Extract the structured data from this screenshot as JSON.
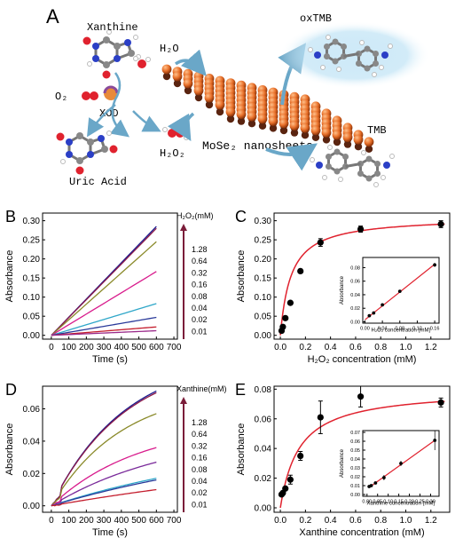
{
  "panel_a": {
    "letter": "A",
    "labels": {
      "xanthine": "Xanthine",
      "h2o": "H₂O",
      "o2": "O₂",
      "xod": "XOD",
      "h2o2": "H₂O₂",
      "uric_acid": "Uric Acid",
      "nanosheets": "MoSe₂ nanosheets",
      "oxtmb": "oxTMB",
      "tmb": "TMB"
    },
    "colors": {
      "nanosheet": "#e8702a",
      "oxtmb_glow": "#bfe3f5",
      "arrow": "#6aa7c8"
    }
  },
  "chart_data": [
    {
      "id": "B",
      "letter": "B",
      "type": "line",
      "xlabel": "Time (s)",
      "ylabel": "Absorbance",
      "xlim": [
        -50,
        720
      ],
      "ylim": [
        -0.01,
        0.32
      ],
      "xticks": [
        0,
        100,
        200,
        300,
        400,
        500,
        600,
        700
      ],
      "yticks": [
        0.0,
        0.05,
        0.1,
        0.15,
        0.2,
        0.25,
        0.3
      ],
      "ytick_labels": [
        "0.00",
        "0.05",
        "0.10",
        "0.15",
        "0.20",
        "0.25",
        "0.30"
      ],
      "legend_title": "H₂O₂(mM)",
      "legend_values": [
        "1.28",
        "0.64",
        "0.32",
        "0.16",
        "0.08",
        "0.04",
        "0.02",
        "0.01"
      ],
      "arrow_color": "#7b1d3a",
      "series": [
        {
          "color": "#1a1a8c",
          "x": [
            0,
            600
          ],
          "y": [
            0,
            0.285
          ]
        },
        {
          "color": "#8c1a4a",
          "x": [
            0,
            600
          ],
          "y": [
            0,
            0.28
          ]
        },
        {
          "color": "#8a8a2a",
          "x": [
            0,
            600
          ],
          "y": [
            0,
            0.245
          ]
        },
        {
          "color": "#d81b8c",
          "x": [
            0,
            600
          ],
          "y": [
            0,
            0.167
          ]
        },
        {
          "color": "#2fa7c9",
          "x": [
            0,
            600
          ],
          "y": [
            0,
            0.083
          ]
        },
        {
          "color": "#2a3a9a",
          "x": [
            0,
            600
          ],
          "y": [
            0,
            0.047
          ]
        },
        {
          "color": "#c41e2e",
          "x": [
            0,
            600
          ],
          "y": [
            0,
            0.022
          ]
        },
        {
          "color": "#9a2a8a",
          "x": [
            0,
            600
          ],
          "y": [
            0,
            0.012
          ]
        }
      ]
    },
    {
      "id": "C",
      "letter": "C",
      "type": "scatter",
      "xlabel": "H₂O₂ concentration (mM)",
      "ylabel": "Absorbance",
      "xlim": [
        -0.05,
        1.35
      ],
      "ylim": [
        -0.01,
        0.32
      ],
      "xticks": [
        0.0,
        0.2,
        0.4,
        0.6,
        0.8,
        1.0,
        1.2
      ],
      "xtick_labels": [
        "0.0",
        "0.2",
        "0.4",
        "0.6",
        "0.8",
        "1.0",
        "1.2"
      ],
      "yticks": [
        0.0,
        0.05,
        0.1,
        0.15,
        0.2,
        0.25,
        0.3
      ],
      "ytick_labels": [
        "0.00",
        "0.05",
        "0.10",
        "0.15",
        "0.20",
        "0.25",
        "0.30"
      ],
      "fit": {
        "type": "michaelis-menten",
        "vmax": 0.31,
        "km": 0.085,
        "color": "#e0222e"
      },
      "points": [
        {
          "x": 0.01,
          "y": 0.012,
          "err": 0.003
        },
        {
          "x": 0.02,
          "y": 0.022,
          "err": 0.003
        },
        {
          "x": 0.04,
          "y": 0.045,
          "err": 0.004
        },
        {
          "x": 0.08,
          "y": 0.085,
          "err": 0.005
        },
        {
          "x": 0.16,
          "y": 0.168,
          "err": 0.005
        },
        {
          "x": 0.32,
          "y": 0.243,
          "err": 0.01
        },
        {
          "x": 0.64,
          "y": 0.278,
          "err": 0.008
        },
        {
          "x": 1.28,
          "y": 0.291,
          "err": 0.009
        }
      ],
      "inset": {
        "xlabel": "H₂O₂ concentration (mM)",
        "ylabel": "Absorbance",
        "xlim": [
          -0.005,
          0.17
        ],
        "ylim": [
          -0.002,
          0.095
        ],
        "xticks": [
          0.0,
          0.04,
          0.08,
          0.12,
          0.16
        ],
        "xtick_labels": [
          "0.00",
          "0.04",
          "0.08",
          "0.12",
          "0.16"
        ],
        "yticks": [
          0.0,
          0.02,
          0.04,
          0.06,
          0.08
        ],
        "ytick_labels": [
          "0.00",
          "0.02",
          "0.04",
          "0.06",
          "0.08"
        ],
        "fit": {
          "type": "linear",
          "x": [
            0.0,
            0.16
          ],
          "y": [
            0.003,
            0.085
          ],
          "color": "#e0222e"
        },
        "points": [
          {
            "x": 0.01,
            "y": 0.009,
            "err": 0.001
          },
          {
            "x": 0.02,
            "y": 0.013,
            "err": 0.001
          },
          {
            "x": 0.04,
            "y": 0.025,
            "err": 0.0015
          },
          {
            "x": 0.08,
            "y": 0.045,
            "err": 0.002
          },
          {
            "x": 0.16,
            "y": 0.084,
            "err": 0.003
          }
        ]
      }
    },
    {
      "id": "D",
      "letter": "D",
      "type": "line",
      "xlabel": "Time (s)",
      "ylabel": "Absorbance",
      "xlim": [
        -50,
        720
      ],
      "ylim": [
        -0.004,
        0.074
      ],
      "xticks": [
        0,
        100,
        200,
        300,
        400,
        500,
        600,
        700
      ],
      "yticks": [
        0.0,
        0.02,
        0.04,
        0.06
      ],
      "ytick_labels": [
        "0.00",
        "0.02",
        "0.04",
        "0.06"
      ],
      "legend_title": "Xanthine(mM)",
      "legend_values": [
        "1.28",
        "0.64",
        "0.32",
        "0.16",
        "0.08",
        "0.04",
        "0.02",
        "0.01"
      ],
      "arrow_color": "#7b1d3a",
      "series": [
        {
          "color": "#1a1a8c",
          "final": 0.071,
          "tau": 420
        },
        {
          "color": "#8c1a4a",
          "final": 0.07,
          "tau": 420
        },
        {
          "color": "#8a8a2a",
          "final": 0.057,
          "tau": 400
        },
        {
          "color": "#d81b8c",
          "final": 0.036,
          "tau": 500
        },
        {
          "color": "#7a2a9a",
          "final": 0.027,
          "tau": 700
        },
        {
          "color": "#2fa7c9",
          "final": 0.017,
          "tau": 1200
        },
        {
          "color": "#2a3a9a",
          "final": 0.016,
          "tau": 1400
        },
        {
          "color": "#c41e2e",
          "final": 0.01,
          "tau": 2000
        }
      ]
    },
    {
      "id": "E",
      "letter": "E",
      "type": "scatter",
      "xlabel": "Xanthine concentration (mM)",
      "ylabel": "Absorbance",
      "xlim": [
        -0.05,
        1.35
      ],
      "ylim": [
        -0.003,
        0.082
      ],
      "xticks": [
        0.0,
        0.2,
        0.4,
        0.6,
        0.8,
        1.0,
        1.2
      ],
      "xtick_labels": [
        "0.0",
        "0.2",
        "0.4",
        "0.6",
        "0.8",
        "1.0",
        "1.2"
      ],
      "yticks": [
        0.0,
        0.02,
        0.04,
        0.06,
        0.08
      ],
      "ytick_labels": [
        "0.00",
        "0.02",
        "0.04",
        "0.06",
        "0.08"
      ],
      "fit": {
        "type": "michaelis-menten",
        "vmax": 0.08,
        "km": 0.15,
        "offset": 0.0,
        "color": "#e0222e"
      },
      "points": [
        {
          "x": 0.01,
          "y": 0.009,
          "err": 0.001
        },
        {
          "x": 0.02,
          "y": 0.01,
          "err": 0.001
        },
        {
          "x": 0.04,
          "y": 0.013,
          "err": 0.001
        },
        {
          "x": 0.08,
          "y": 0.019,
          "err": 0.003
        },
        {
          "x": 0.16,
          "y": 0.035,
          "err": 0.003
        },
        {
          "x": 0.32,
          "y": 0.061,
          "err": 0.011
        },
        {
          "x": 0.64,
          "y": 0.075,
          "err": 0.007
        },
        {
          "x": 1.28,
          "y": 0.071,
          "err": 0.003
        }
      ],
      "inset": {
        "xlabel": "Xanthine concentration (mM)",
        "ylabel": "Absorbance",
        "xlim": [
          -0.02,
          0.34
        ],
        "ylim": [
          -0.002,
          0.072
        ],
        "xticks": [
          0.0,
          0.05,
          0.1,
          0.15,
          0.2,
          0.25,
          0.3
        ],
        "xtick_labels": [
          "0.00",
          "0.05",
          "0.10",
          "0.15",
          "0.20",
          "0.25",
          "0.30"
        ],
        "yticks": [
          0.0,
          0.01,
          0.02,
          0.03,
          0.04,
          0.05,
          0.06,
          0.07
        ],
        "ytick_labels": [
          "0.00",
          "0.01",
          "0.02",
          "0.03",
          "0.04",
          "0.05",
          "0.06",
          "0.07"
        ],
        "fit": {
          "type": "linear",
          "x": [
            0.01,
            0.32
          ],
          "y": [
            0.008,
            0.061
          ],
          "color": "#e0222e"
        },
        "points": [
          {
            "x": 0.01,
            "y": 0.009,
            "err": 0.001
          },
          {
            "x": 0.02,
            "y": 0.01,
            "err": 0.001
          },
          {
            "x": 0.04,
            "y": 0.013,
            "err": 0.001
          },
          {
            "x": 0.08,
            "y": 0.019,
            "err": 0.003
          },
          {
            "x": 0.16,
            "y": 0.035,
            "err": 0.003
          },
          {
            "x": 0.32,
            "y": 0.061,
            "err": 0.011
          }
        ]
      }
    }
  ]
}
